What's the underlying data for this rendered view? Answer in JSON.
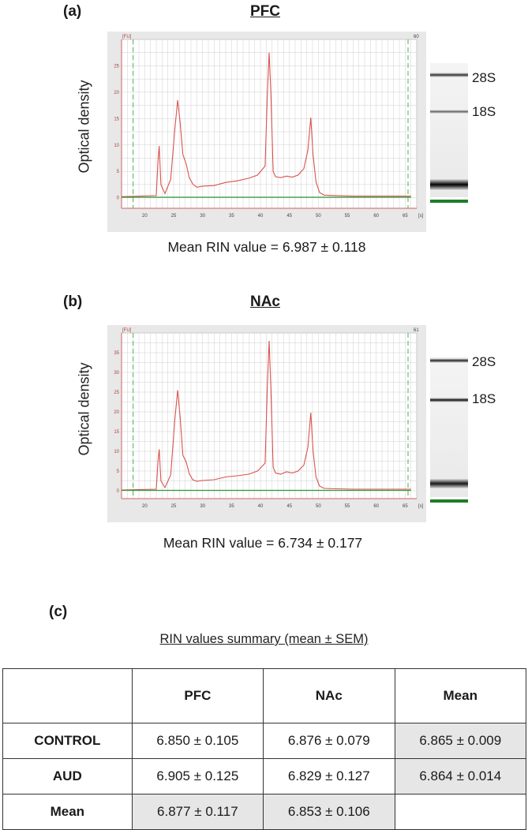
{
  "panels": [
    {
      "letter": "(a)",
      "title": "PFC",
      "ylabel": "Optical density",
      "rin_text": "Mean RIN value  = 6.987 ± 0.118",
      "axis_top_left": "[FU]",
      "axis_top_right": "60",
      "x_unit": "[s]",
      "gel_labels": [
        "28S",
        "18S"
      ]
    },
    {
      "letter": "(b)",
      "title": "NAc",
      "ylabel": "Optical density",
      "rin_text": "Mean RIN value  = 6.734 ± 0.177",
      "axis_top_left": "[FU]",
      "axis_top_right": "61",
      "x_unit": "[s]",
      "gel_labels": [
        "28S",
        "18S"
      ]
    }
  ],
  "chart_data": [
    {
      "type": "line",
      "title": "PFC",
      "ylabel": "Optical density",
      "xlabel": "[s]",
      "xlim": [
        16,
        67
      ],
      "ylim": [
        -2,
        30
      ],
      "x_ticks": [
        20,
        25,
        30,
        35,
        40,
        45,
        50,
        55,
        60,
        65
      ],
      "y_ticks": [
        0,
        5,
        10,
        15,
        20,
        25
      ],
      "grid": true,
      "series": [
        {
          "x": [
            16,
            22.0,
            22.3,
            22.5,
            22.8,
            23.5,
            24.5,
            25.2,
            25.7,
            26.1,
            26.6,
            27.2,
            27.7,
            28.3,
            29,
            30,
            32,
            34,
            36,
            38,
            39.5,
            40.8,
            41.2,
            41.5,
            41.8,
            42.2,
            42.6,
            43.5,
            44.5,
            45.5,
            46.5,
            47.5,
            48.2,
            48.7,
            49.1,
            49.6,
            50.2,
            51,
            53,
            56,
            60,
            66
          ],
          "values": [
            0.2,
            0.4,
            7.0,
            9.8,
            2.5,
            0.8,
            3.5,
            13.0,
            18.5,
            14.5,
            8.2,
            6.3,
            3.8,
            2.6,
            2.0,
            2.2,
            2.3,
            2.9,
            3.2,
            3.7,
            4.3,
            6.0,
            20.0,
            27.5,
            20.0,
            5.0,
            4.0,
            3.8,
            4.1,
            3.9,
            4.3,
            5.5,
            9.0,
            15.2,
            8.0,
            3.0,
            1.0,
            0.5,
            0.4,
            0.3,
            0.3,
            0.3
          ]
        },
        {
          "x": [
            16,
            66
          ],
          "values": [
            0.1,
            0.1
          ]
        }
      ]
    },
    {
      "type": "line",
      "title": "NAc",
      "ylabel": "Optical density",
      "xlabel": "[s]",
      "xlim": [
        16,
        67
      ],
      "ylim": [
        -2,
        40
      ],
      "x_ticks": [
        20,
        25,
        30,
        35,
        40,
        45,
        50,
        55,
        60,
        65
      ],
      "y_ticks": [
        0,
        5,
        10,
        15,
        20,
        25,
        30,
        35
      ],
      "grid": true,
      "series": [
        {
          "x": [
            16,
            22.0,
            22.3,
            22.5,
            22.8,
            23.5,
            24.5,
            25.2,
            25.7,
            26.1,
            26.6,
            27.2,
            27.7,
            28.3,
            29,
            30,
            32,
            34,
            36,
            38,
            39.5,
            40.8,
            41.2,
            41.5,
            41.8,
            42.2,
            42.6,
            43.5,
            44.5,
            45.5,
            46.5,
            47.5,
            48.2,
            48.7,
            49.1,
            49.6,
            50.2,
            51,
            53,
            56,
            60,
            66
          ],
          "values": [
            0.2,
            0.4,
            7.5,
            10.5,
            2.5,
            0.8,
            4.0,
            18.0,
            25.5,
            19.0,
            9.0,
            7.2,
            4.3,
            2.8,
            2.4,
            2.6,
            2.8,
            3.5,
            3.8,
            4.2,
            5.0,
            7.0,
            27.0,
            38.0,
            26.0,
            6.0,
            4.5,
            4.2,
            4.8,
            4.5,
            5.0,
            6.5,
            11.0,
            19.8,
            10.0,
            3.5,
            1.2,
            0.6,
            0.5,
            0.4,
            0.4,
            0.4
          ]
        },
        {
          "x": [
            16,
            66
          ],
          "values": [
            0.1,
            0.1
          ]
        }
      ]
    }
  ],
  "summary": {
    "letter": "(c)",
    "title": "RIN values summary  (mean ± SEM)",
    "columns": [
      "",
      "PFC",
      "NAc",
      "Mean"
    ],
    "rows": [
      {
        "label": "CONTROL",
        "cells": [
          "6.850 ± 0.105",
          "6.876 ± 0.079",
          "6.865 ± 0.009"
        ]
      },
      {
        "label": "AUD",
        "cells": [
          "6.905 ± 0.125",
          "6.829 ± 0.127",
          "6.864 ± 0.014"
        ]
      },
      {
        "label": "Mean",
        "cells": [
          "6.877 ± 0.117",
          "6.853 ± 0.106",
          ""
        ]
      }
    ]
  },
  "colors": {
    "trace": "#d9534f",
    "baseline": "#2e9a3a",
    "marker": "#4caf50",
    "grid": "#cfcfcf",
    "axis": "#d06060",
    "band_dark": "#111111",
    "band_mid": "#444444"
  }
}
